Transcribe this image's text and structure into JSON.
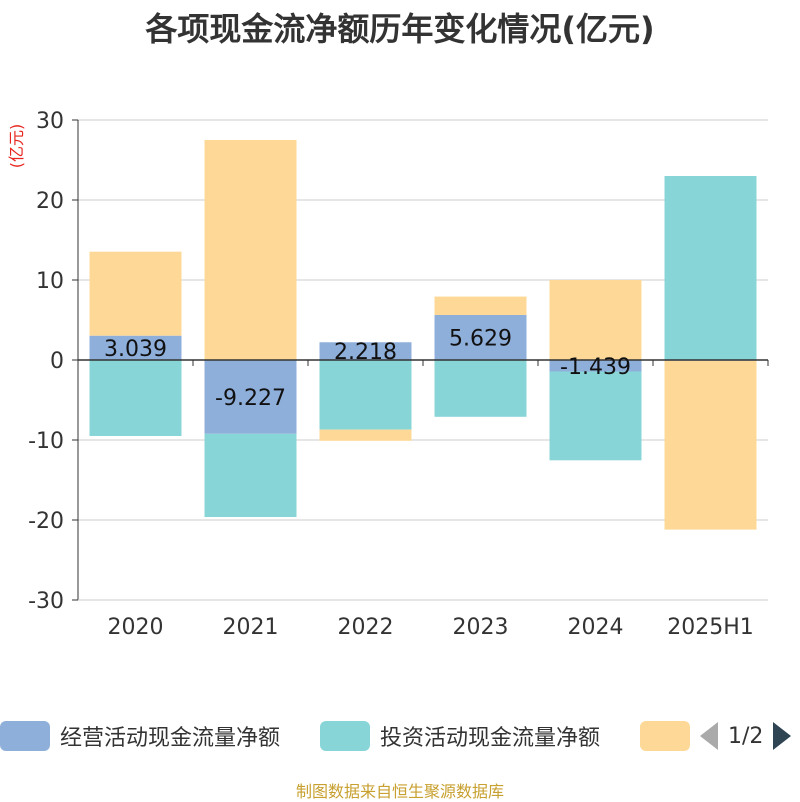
{
  "chart_data": {
    "type": "bar",
    "title": "各项现金流净额历年变化情况(亿元)",
    "ylabel": "(亿元)",
    "ylim": [
      -30,
      30
    ],
    "yticks": [
      30,
      20,
      10,
      0,
      -10,
      -20,
      -30
    ],
    "categories": [
      "2020",
      "2021",
      "2022",
      "2023",
      "2024",
      "2025H1"
    ],
    "stacked": true,
    "series": [
      {
        "name": "经营活动现金流量净额",
        "color": "#8fafdb",
        "values": [
          3.039,
          -9.227,
          2.218,
          5.629,
          -1.439,
          -0.1
        ],
        "labels": [
          "3.039",
          "-9.227",
          "2.218",
          "5.629",
          "-1.439",
          ""
        ]
      },
      {
        "name": "投资活动现金流量净额",
        "color": "#88d5d8",
        "values": [
          -9.5,
          -10.4,
          -8.7,
          -7.1,
          -11.1,
          23.0
        ]
      },
      {
        "name": "",
        "color": "#fed896",
        "values": [
          10.5,
          27.5,
          -1.4,
          2.3,
          10.0,
          -21.1
        ]
      }
    ],
    "grid": true,
    "legend_position": "bottom"
  },
  "legend": {
    "pager": "1/2"
  },
  "source": "制图数据来自恒生聚源数据库"
}
